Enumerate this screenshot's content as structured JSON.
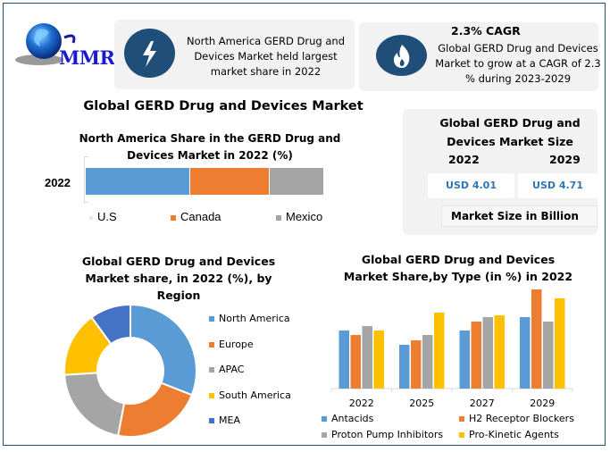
{
  "brand": {
    "logo_text": "MMR"
  },
  "cards": {
    "left": {
      "icon": "lightning-icon",
      "text": "North America GERD Drug and Devices Market held largest market share in 2022"
    },
    "right": {
      "icon": "flame-icon",
      "heading": "2.3% CAGR",
      "text": "Global GERD Drug and Devices Market to grow at a CAGR of 2.3 % during 2023-2029"
    }
  },
  "main_title": "Global GERD Drug and Devices Market",
  "market_size": {
    "title": "Global GERD Drug and Devices Market Size",
    "years": [
      "2022",
      "2029"
    ],
    "values": [
      "USD 4.01",
      "USD 4.71"
    ],
    "unit_label": "Market Size in Billion",
    "value_color": "#2e75b6"
  },
  "chart_data": [
    {
      "type": "bar",
      "orientation": "horizontal-stacked",
      "title": "North America Share in the GERD Drug and Devices Market  in 2022 (%)",
      "categories": [
        "2022"
      ],
      "series": [
        {
          "name": "U.S",
          "values": [
            44
          ],
          "color": "#5b9bd5"
        },
        {
          "name": "Canada",
          "values": [
            33.5
          ],
          "color": "#ed7d31"
        },
        {
          "name": "Mexico",
          "values": [
            22.5
          ],
          "color": "#a5a5a5"
        }
      ],
      "xlabel": "",
      "ylabel": "",
      "legend": "bottom"
    },
    {
      "type": "pie",
      "donut": true,
      "title": "Global GERD Drug and Devices Market share, in 2022 (%), by Region",
      "categories": [
        "North America",
        "Europe",
        "APAC",
        "South America",
        "MEA"
      ],
      "values": [
        31,
        22,
        21,
        16,
        10
      ],
      "colors": [
        "#5b9bd5",
        "#ed7d31",
        "#a5a5a5",
        "#ffc000",
        "#4472c4"
      ],
      "legend": "right"
    },
    {
      "type": "bar",
      "title": "Global GERD Drug and Devices Market Share,by Type (in %) in 2022",
      "categories": [
        "2022",
        "2025",
        "2027",
        "2029"
      ],
      "series": [
        {
          "name": "Antacids",
          "values": [
            6.5,
            4.9,
            6.5,
            8.0
          ],
          "color": "#5b9bd5"
        },
        {
          "name": "H2 Receptor Blockers",
          "values": [
            6.0,
            5.4,
            7.5,
            11.1
          ],
          "color": "#ed7d31"
        },
        {
          "name": "Proton Pump Inhibitors",
          "values": [
            7.0,
            6.0,
            8.0,
            7.5
          ],
          "color": "#a5a5a5"
        },
        {
          "name": "Pro-Kinetic Agents",
          "values": [
            6.5,
            8.5,
            8.2,
            10.1
          ],
          "color": "#ffc000"
        }
      ],
      "xlabel": "",
      "ylabel": "",
      "ylim": [
        0,
        11.1
      ],
      "grid": false,
      "legend": "bottom"
    }
  ]
}
